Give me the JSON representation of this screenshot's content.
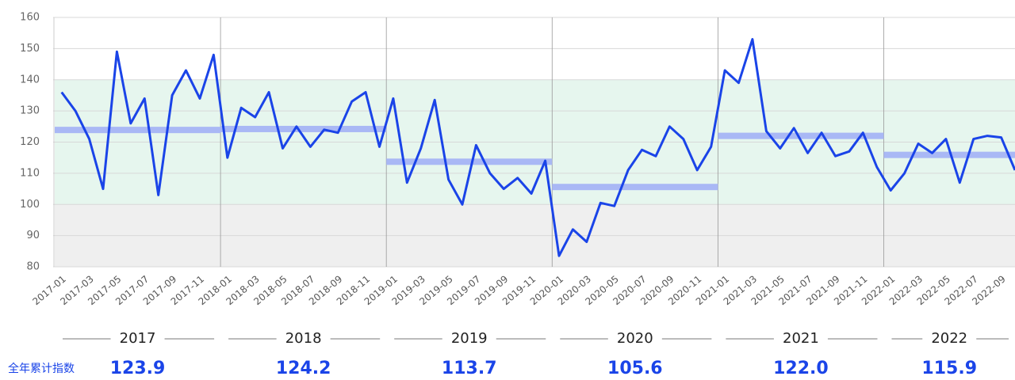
{
  "chart_data": {
    "type": "line",
    "categories": [
      "2017-01",
      null,
      "2017-03",
      null,
      "2017-05",
      null,
      "2017-07",
      null,
      "2017-09",
      null,
      "2017-11",
      null,
      "2018-01",
      null,
      "2018-03",
      null,
      "2018-05",
      null,
      "2018-07",
      null,
      "2018-09",
      null,
      "2018-11",
      null,
      "2019-01",
      null,
      "2019-03",
      null,
      "2019-05",
      null,
      "2019-07",
      null,
      "2019-09",
      null,
      "2019-11",
      null,
      "2020-01",
      null,
      "2020-03",
      null,
      "2020-05",
      null,
      "2020-07",
      null,
      "2020-09",
      null,
      "2020-11",
      null,
      "2021-01",
      null,
      "2021-03",
      null,
      "2021-05",
      null,
      "2021-07",
      null,
      "2021-09",
      null,
      "2021-11",
      null,
      "2022-01",
      null,
      "2022-03",
      null,
      "2022-05",
      null,
      "2022-07",
      null,
      "2022-09",
      null
    ],
    "series": [
      {
        "color": "#1a44e8",
        "values": [
          136,
          130,
          121,
          105,
          149,
          126,
          134,
          103,
          135,
          143,
          134,
          148,
          115,
          131,
          128,
          136,
          118,
          125,
          118.5,
          124,
          123,
          133,
          136,
          118.5,
          134,
          107,
          118,
          133.5,
          108,
          100,
          119,
          110,
          105,
          108.5,
          103.5,
          114,
          83.5,
          92,
          88,
          100.5,
          99.5,
          111,
          117.5,
          115.5,
          125,
          121,
          111,
          118.5,
          143,
          139,
          153,
          123.5,
          118,
          124.5,
          116.5,
          123,
          115.5,
          117,
          123,
          112,
          104.5,
          110,
          119.5,
          116.5,
          121,
          107,
          121,
          122,
          121.5,
          111
        ]
      }
    ],
    "ylim": [
      80,
      160
    ],
    "yticks": [
      80,
      90,
      100,
      110,
      120,
      130,
      140,
      150,
      160
    ],
    "grid": true,
    "bands": [
      {
        "from": 80,
        "to": 100,
        "color": "#efefef"
      },
      {
        "from": 100,
        "to": 140,
        "color": "#e6f6ee"
      }
    ],
    "annual": {
      "label": "全年累计指数",
      "color": "#a9b8f5",
      "years": [
        "2017",
        "2018",
        "2019",
        "2020",
        "2021",
        "2022"
      ],
      "values": [
        123.9,
        124.2,
        113.7,
        105.6,
        122.0,
        115.9
      ],
      "value_labels": [
        "123.9",
        "124.2",
        "113.7",
        "105.6",
        "122.0",
        "115.9"
      ]
    }
  }
}
